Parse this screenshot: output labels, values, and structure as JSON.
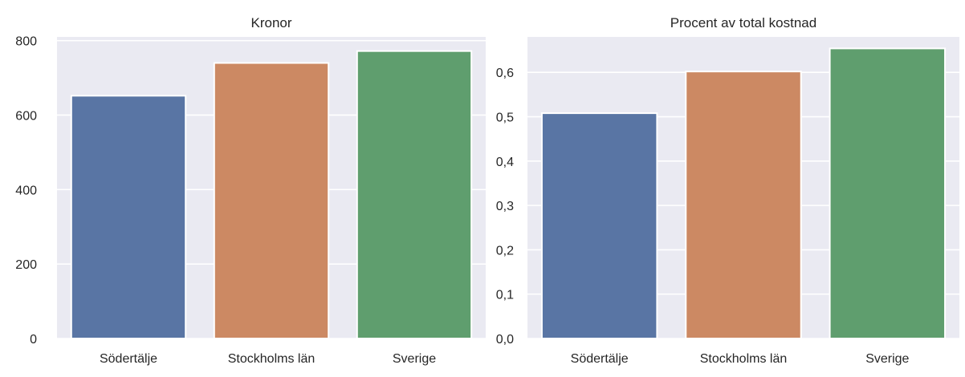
{
  "chart_data": [
    {
      "type": "bar",
      "title": "Kronor",
      "xlabel": "",
      "ylabel": "",
      "categories": [
        "Södertälje",
        "Stockholms län",
        "Sverige"
      ],
      "values": [
        652,
        740,
        772
      ],
      "ylim": [
        0,
        810
      ],
      "yticks": [
        0,
        200,
        400,
        600,
        800
      ],
      "ytick_labels": [
        "0",
        "200",
        "400",
        "600",
        "800"
      ],
      "grid": true
    },
    {
      "type": "bar",
      "title": "Procent av total kostnad",
      "xlabel": "",
      "ylabel": "",
      "categories": [
        "Södertälje",
        "Stockholms län",
        "Sverige"
      ],
      "values": [
        0.508,
        0.602,
        0.654
      ],
      "ylim": [
        0,
        0.68
      ],
      "yticks": [
        0,
        0.1,
        0.2,
        0.3,
        0.4,
        0.5,
        0.6
      ],
      "ytick_labels": [
        "0,0",
        "0,1",
        "0,2",
        "0,3",
        "0,4",
        "0,5",
        "0,6"
      ],
      "grid": true
    }
  ],
  "colors": {
    "background": "#eaeaf2",
    "grid": "#ffffff",
    "bars": [
      "#5975a4",
      "#cc8963",
      "#5f9e6e"
    ],
    "text": "#262626"
  }
}
